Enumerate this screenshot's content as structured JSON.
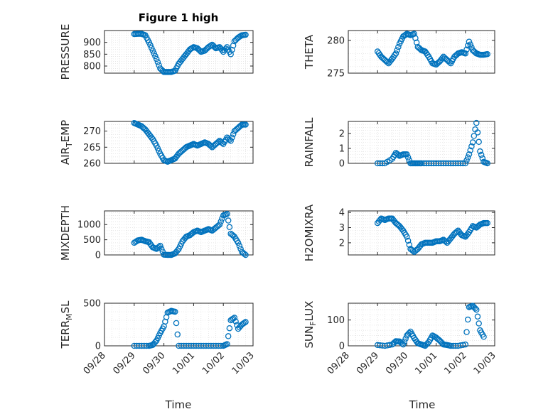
{
  "figure": {
    "title": "Figure 1 high",
    "xlabel": "Time"
  },
  "style": {
    "marker_color": "#0072BD",
    "axis_color": "#262626",
    "grid_color": "#D9D9D9"
  },
  "x_ticks": [
    "09/28",
    "09/29",
    "09/30",
    "10/01",
    "10/02",
    "10/03"
  ],
  "chart_data": [
    {
      "type": "scatter",
      "ylabel": "PRESSURE",
      "ylim": [
        770,
        950
      ],
      "yticks": [
        800,
        850,
        900
      ],
      "grid": true,
      "x": [
        "09/29 00:00",
        "09/29 03:00",
        "09/29 06:00",
        "09/29 09:00",
        "09/29 12:00",
        "09/29 15:00",
        "09/29 18:00",
        "09/29 21:00",
        "09/30 00:00",
        "09/30 03:00",
        "09/30 06:00",
        "09/30 09:00",
        "09/30 12:00",
        "09/30 15:00",
        "09/30 18:00",
        "09/30 21:00",
        "10/01 00:00",
        "10/01 03:00",
        "10/01 06:00",
        "10/01 09:00",
        "10/01 12:00",
        "10/01 15:00",
        "10/01 18:00",
        "10/01 21:00",
        "10/02 00:00",
        "10/02 03:00",
        "10/02 06:00",
        "10/02 09:00",
        "10/02 12:00",
        "10/02 15:00",
        "10/02 18:00"
      ],
      "y": [
        935,
        936,
        936,
        930,
        900,
        865,
        830,
        790,
        775,
        775,
        775,
        780,
        810,
        830,
        850,
        870,
        880,
        875,
        860,
        865,
        880,
        890,
        875,
        880,
        860,
        880,
        850,
        905,
        920,
        930,
        932
      ]
    },
    {
      "type": "scatter",
      "ylabel": "THETA",
      "ylim": [
        275,
        281.5
      ],
      "yticks": [
        275,
        280
      ],
      "grid": true,
      "x": [
        "09/29 00:00",
        "09/29 03:00",
        "09/29 06:00",
        "09/29 09:00",
        "09/29 12:00",
        "09/29 15:00",
        "09/29 18:00",
        "09/29 21:00",
        "09/30 00:00",
        "09/30 03:00",
        "09/30 06:00",
        "09/30 09:00",
        "09/30 12:00",
        "09/30 15:00",
        "09/30 18:00",
        "09/30 21:00",
        "10/01 00:00",
        "10/01 03:00",
        "10/01 06:00",
        "10/01 09:00",
        "10/01 12:00",
        "10/01 15:00",
        "10/01 18:00",
        "10/01 21:00",
        "10/02 00:00",
        "10/02 03:00",
        "10/02 06:00",
        "10/02 09:00",
        "10/02 12:00",
        "10/02 15:00",
        "10/02 18:00"
      ],
      "y": [
        278.3,
        277.5,
        277.0,
        276.5,
        277.2,
        278.0,
        279.5,
        280.6,
        281.0,
        280.8,
        281.0,
        279.0,
        278.5,
        278.3,
        277.5,
        276.5,
        276.3,
        276.8,
        277.5,
        277.0,
        276.5,
        277.5,
        278.0,
        278.2,
        278.0,
        279.8,
        278.5,
        278.0,
        277.8,
        277.8,
        277.9
      ]
    },
    {
      "type": "scatter",
      "ylabel": "AIR_TEMP",
      "ylim": [
        260,
        273
      ],
      "yticks": [
        260,
        265,
        270
      ],
      "grid": true,
      "x": [
        "09/29 00:00",
        "09/29 03:00",
        "09/29 06:00",
        "09/29 09:00",
        "09/29 12:00",
        "09/29 15:00",
        "09/29 18:00",
        "09/29 21:00",
        "09/30 00:00",
        "09/30 03:00",
        "09/30 06:00",
        "09/30 09:00",
        "09/30 12:00",
        "09/30 15:00",
        "09/30 18:00",
        "09/30 21:00",
        "10/01 00:00",
        "10/01 03:00",
        "10/01 06:00",
        "10/01 09:00",
        "10/01 12:00",
        "10/01 15:00",
        "10/01 18:00",
        "10/01 21:00",
        "10/02 00:00",
        "10/02 03:00",
        "10/02 06:00",
        "10/02 09:00",
        "10/02 12:00",
        "10/02 15:00",
        "10/02 18:00"
      ],
      "y": [
        272.5,
        272.0,
        271.5,
        270.5,
        269.0,
        267.5,
        265.5,
        263.0,
        261.0,
        260.5,
        261.0,
        261.5,
        263.0,
        264.0,
        265.0,
        265.5,
        266.0,
        265.5,
        266.0,
        266.5,
        266.0,
        265.0,
        266.0,
        267.0,
        266.0,
        268.0,
        267.0,
        270.0,
        271.0,
        272.0,
        272.0
      ]
    },
    {
      "type": "scatter",
      "ylabel": "RAINFALL",
      "ylim": [
        0,
        2.8
      ],
      "yticks": [
        0,
        1,
        2
      ],
      "grid": true,
      "x": [
        "09/29 00:00",
        "09/29 06:00",
        "09/29 12:00",
        "09/29 15:00",
        "09/29 18:00",
        "09/29 21:00",
        "09/30 00:00",
        "09/30 03:00",
        "09/30 06:00",
        "09/30 09:00",
        "09/30 12:00",
        "09/30 18:00",
        "10/01 00:00",
        "10/01 06:00",
        "10/01 12:00",
        "10/01 18:00",
        "10/02 00:00",
        "10/02 03:00",
        "10/02 06:00",
        "10/02 09:00",
        "10/02 12:00",
        "10/02 15:00",
        "10/02 18:00"
      ],
      "y": [
        0,
        0,
        0.3,
        0.7,
        0.5,
        0.6,
        0.6,
        0,
        0,
        0,
        0,
        0,
        0,
        0,
        0,
        0,
        0,
        0.6,
        1.4,
        2.7,
        0.8,
        0.1,
        0
      ]
    },
    {
      "type": "scatter",
      "ylabel": "MIXDEPTH",
      "ylim": [
        0,
        1450
      ],
      "yticks": [
        0,
        500,
        1000
      ],
      "grid": true,
      "x": [
        "09/29 00:00",
        "09/29 03:00",
        "09/29 06:00",
        "09/29 09:00",
        "09/29 12:00",
        "09/29 15:00",
        "09/29 18:00",
        "09/29 21:00",
        "09/30 00:00",
        "09/30 03:00",
        "09/30 06:00",
        "09/30 09:00",
        "09/30 12:00",
        "09/30 15:00",
        "09/30 18:00",
        "09/30 21:00",
        "10/01 00:00",
        "10/01 03:00",
        "10/01 06:00",
        "10/01 09:00",
        "10/01 12:00",
        "10/01 15:00",
        "10/01 18:00",
        "10/01 21:00",
        "10/02 00:00",
        "10/02 03:00",
        "10/02 06:00",
        "10/02 09:00",
        "10/02 12:00",
        "10/02 15:00",
        "10/02 18:00"
      ],
      "y": [
        400,
        480,
        500,
        450,
        420,
        250,
        200,
        300,
        10,
        0,
        0,
        50,
        200,
        450,
        600,
        650,
        750,
        800,
        750,
        800,
        850,
        800,
        900,
        1000,
        1300,
        1350,
        700,
        600,
        400,
        100,
        0
      ]
    },
    {
      "type": "scatter",
      "ylabel": "H2OMIXRA",
      "ylim": [
        1.2,
        4.1
      ],
      "yticks": [
        2,
        3,
        4
      ],
      "grid": true,
      "x": [
        "09/29 00:00",
        "09/29 03:00",
        "09/29 06:00",
        "09/29 09:00",
        "09/29 12:00",
        "09/29 15:00",
        "09/29 18:00",
        "09/29 21:00",
        "09/30 00:00",
        "09/30 03:00",
        "09/30 06:00",
        "09/30 09:00",
        "09/30 12:00",
        "09/30 15:00",
        "09/30 18:00",
        "09/30 21:00",
        "10/01 00:00",
        "10/01 03:00",
        "10/01 06:00",
        "10/01 09:00",
        "10/01 12:00",
        "10/01 15:00",
        "10/01 18:00",
        "10/01 21:00",
        "10/02 00:00",
        "10/02 03:00",
        "10/02 06:00",
        "10/02 09:00",
        "10/02 12:00",
        "10/02 15:00",
        "10/02 18:00"
      ],
      "y": [
        3.3,
        3.6,
        3.5,
        3.6,
        3.6,
        3.3,
        3.1,
        2.8,
        2.4,
        1.6,
        1.4,
        1.6,
        1.9,
        2.0,
        2.0,
        2.0,
        2.1,
        2.1,
        2.2,
        2.0,
        2.3,
        2.6,
        2.8,
        2.5,
        2.4,
        2.7,
        3.1,
        3.0,
        3.2,
        3.3,
        3.3
      ]
    },
    {
      "type": "scatter",
      "ylabel": "TERR_MSL",
      "ylim": [
        0,
        500
      ],
      "yticks": [
        0,
        500
      ],
      "grid": true,
      "x": [
        "09/29 00:00",
        "09/29 06:00",
        "09/29 12:00",
        "09/29 15:00",
        "09/29 18:00",
        "09/29 21:00",
        "09/30 00:00",
        "09/30 03:00",
        "09/30 06:00",
        "09/30 09:00",
        "09/30 12:00",
        "09/30 18:00",
        "10/01 00:00",
        "10/01 06:00",
        "10/01 12:00",
        "10/01 18:00",
        "10/02 00:00",
        "10/02 03:00",
        "10/02 06:00",
        "10/02 09:00",
        "10/02 12:00",
        "10/02 15:00",
        "10/02 18:00"
      ],
      "y": [
        0,
        0,
        0,
        10,
        60,
        150,
        230,
        390,
        410,
        400,
        0,
        0,
        0,
        0,
        0,
        0,
        0,
        20,
        300,
        330,
        200,
        250,
        280
      ]
    },
    {
      "type": "scatter",
      "ylabel": "SUN_FLUX",
      "ylim": [
        0,
        165
      ],
      "yticks": [
        0,
        100
      ],
      "grid": true,
      "x": [
        "09/29 00:00",
        "09/29 06:00",
        "09/29 12:00",
        "09/29 15:00",
        "09/29 18:00",
        "09/29 21:00",
        "09/30 00:00",
        "09/30 03:00",
        "09/30 06:00",
        "09/30 09:00",
        "09/30 12:00",
        "09/30 15:00",
        "09/30 18:00",
        "09/30 21:00",
        "10/01 00:00",
        "10/01 03:00",
        "10/01 06:00",
        "10/01 09:00",
        "10/01 12:00",
        "10/01 18:00",
        "10/02 00:00",
        "10/02 03:00",
        "10/02 06:00",
        "10/02 09:00",
        "10/02 12:00",
        "10/02 15:00"
      ],
      "y": [
        3,
        0,
        5,
        18,
        17,
        5,
        40,
        55,
        30,
        10,
        5,
        0,
        15,
        40,
        32,
        20,
        5,
        3,
        0,
        0,
        5,
        150,
        155,
        140,
        60,
        35
      ]
    }
  ]
}
